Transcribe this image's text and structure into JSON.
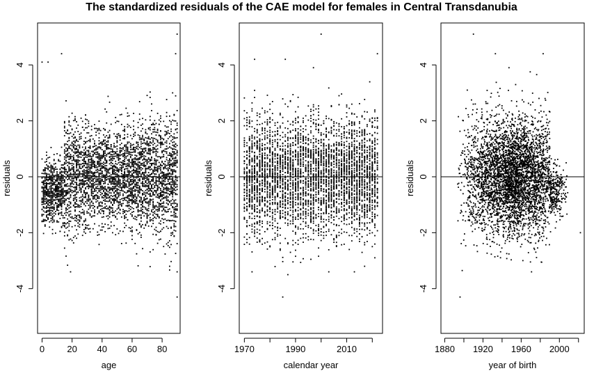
{
  "title": "The standardized residuals of the CAE model for females in Central Transdanubia",
  "chart_data": [
    {
      "type": "scatter",
      "name": "age",
      "xlabel": "age",
      "ylabel": "residuals",
      "xlim": [
        -3,
        92
      ],
      "ylim": [
        -5.6,
        5.5
      ],
      "xticks": [
        0,
        20,
        40,
        60,
        80
      ],
      "xtick_labels": [
        "0",
        "20",
        "40",
        "60",
        "80"
      ],
      "yticks": [
        -4,
        -2,
        0,
        2,
        4
      ],
      "ytick_labels": [
        "-4",
        "-2",
        "0",
        "2",
        "4"
      ],
      "hline": 0,
      "x_range": [
        0,
        90
      ],
      "n_points": 4200,
      "notable_points": [
        {
          "x": 90,
          "y": 5.1
        },
        {
          "x": 89,
          "y": 4.4
        },
        {
          "x": 0,
          "y": 4.1
        },
        {
          "x": 4,
          "y": 4.1
        },
        {
          "x": 13,
          "y": 4.4
        },
        {
          "x": 90,
          "y": -4.3
        },
        {
          "x": 90,
          "y": -3.4
        },
        {
          "x": 85,
          "y": -3.2
        }
      ]
    },
    {
      "type": "scatter",
      "name": "calendar year",
      "xlabel": "calendar year",
      "ylabel": "residuals",
      "xlim": [
        1968,
        2024
      ],
      "ylim": [
        -5.6,
        5.5
      ],
      "xticks": [
        1970,
        1990,
        2010
      ],
      "xtick_labels": [
        "1970",
        "1990",
        "2010"
      ],
      "minor_xticks": [
        1980,
        2000,
        2020
      ],
      "yticks": [
        -4,
        -2,
        0,
        2,
        4
      ],
      "ytick_labels": [
        "-4",
        "-2",
        "0",
        "2",
        "4"
      ],
      "hline": 0,
      "x_range": [
        1970,
        2022
      ],
      "n_points": 4200,
      "notable_points": [
        {
          "x": 2000,
          "y": 5.1
        },
        {
          "x": 1974,
          "y": 4.2
        },
        {
          "x": 1986,
          "y": 4.2
        },
        {
          "x": 2022,
          "y": 4.4
        },
        {
          "x": 1985,
          "y": -4.3
        },
        {
          "x": 1987,
          "y": -3.5
        }
      ]
    },
    {
      "type": "scatter",
      "name": "year of birth",
      "xlabel": "year of birth",
      "ylabel": "residuals",
      "xlim": [
        1876,
        2026
      ],
      "ylim": [
        -5.6,
        5.5
      ],
      "xticks": [
        1880,
        1920,
        1960,
        2000
      ],
      "xtick_labels": [
        "1880",
        "1920",
        "1960",
        "2000"
      ],
      "minor_xticks": [
        1900,
        1940,
        1980,
        2020
      ],
      "yticks": [
        -4,
        -2,
        0,
        2,
        4
      ],
      "ytick_labels": [
        "-4",
        "-2",
        "0",
        "2",
        "4"
      ],
      "hline": 0,
      "x_range": [
        1882,
        2022
      ],
      "n_points": 4200,
      "notable_points": [
        {
          "x": 1910,
          "y": 5.1
        },
        {
          "x": 1933,
          "y": 4.4
        },
        {
          "x": 1983,
          "y": 4.4
        },
        {
          "x": 1896,
          "y": -4.3
        },
        {
          "x": 2022,
          "y": -2.0
        }
      ]
    }
  ]
}
